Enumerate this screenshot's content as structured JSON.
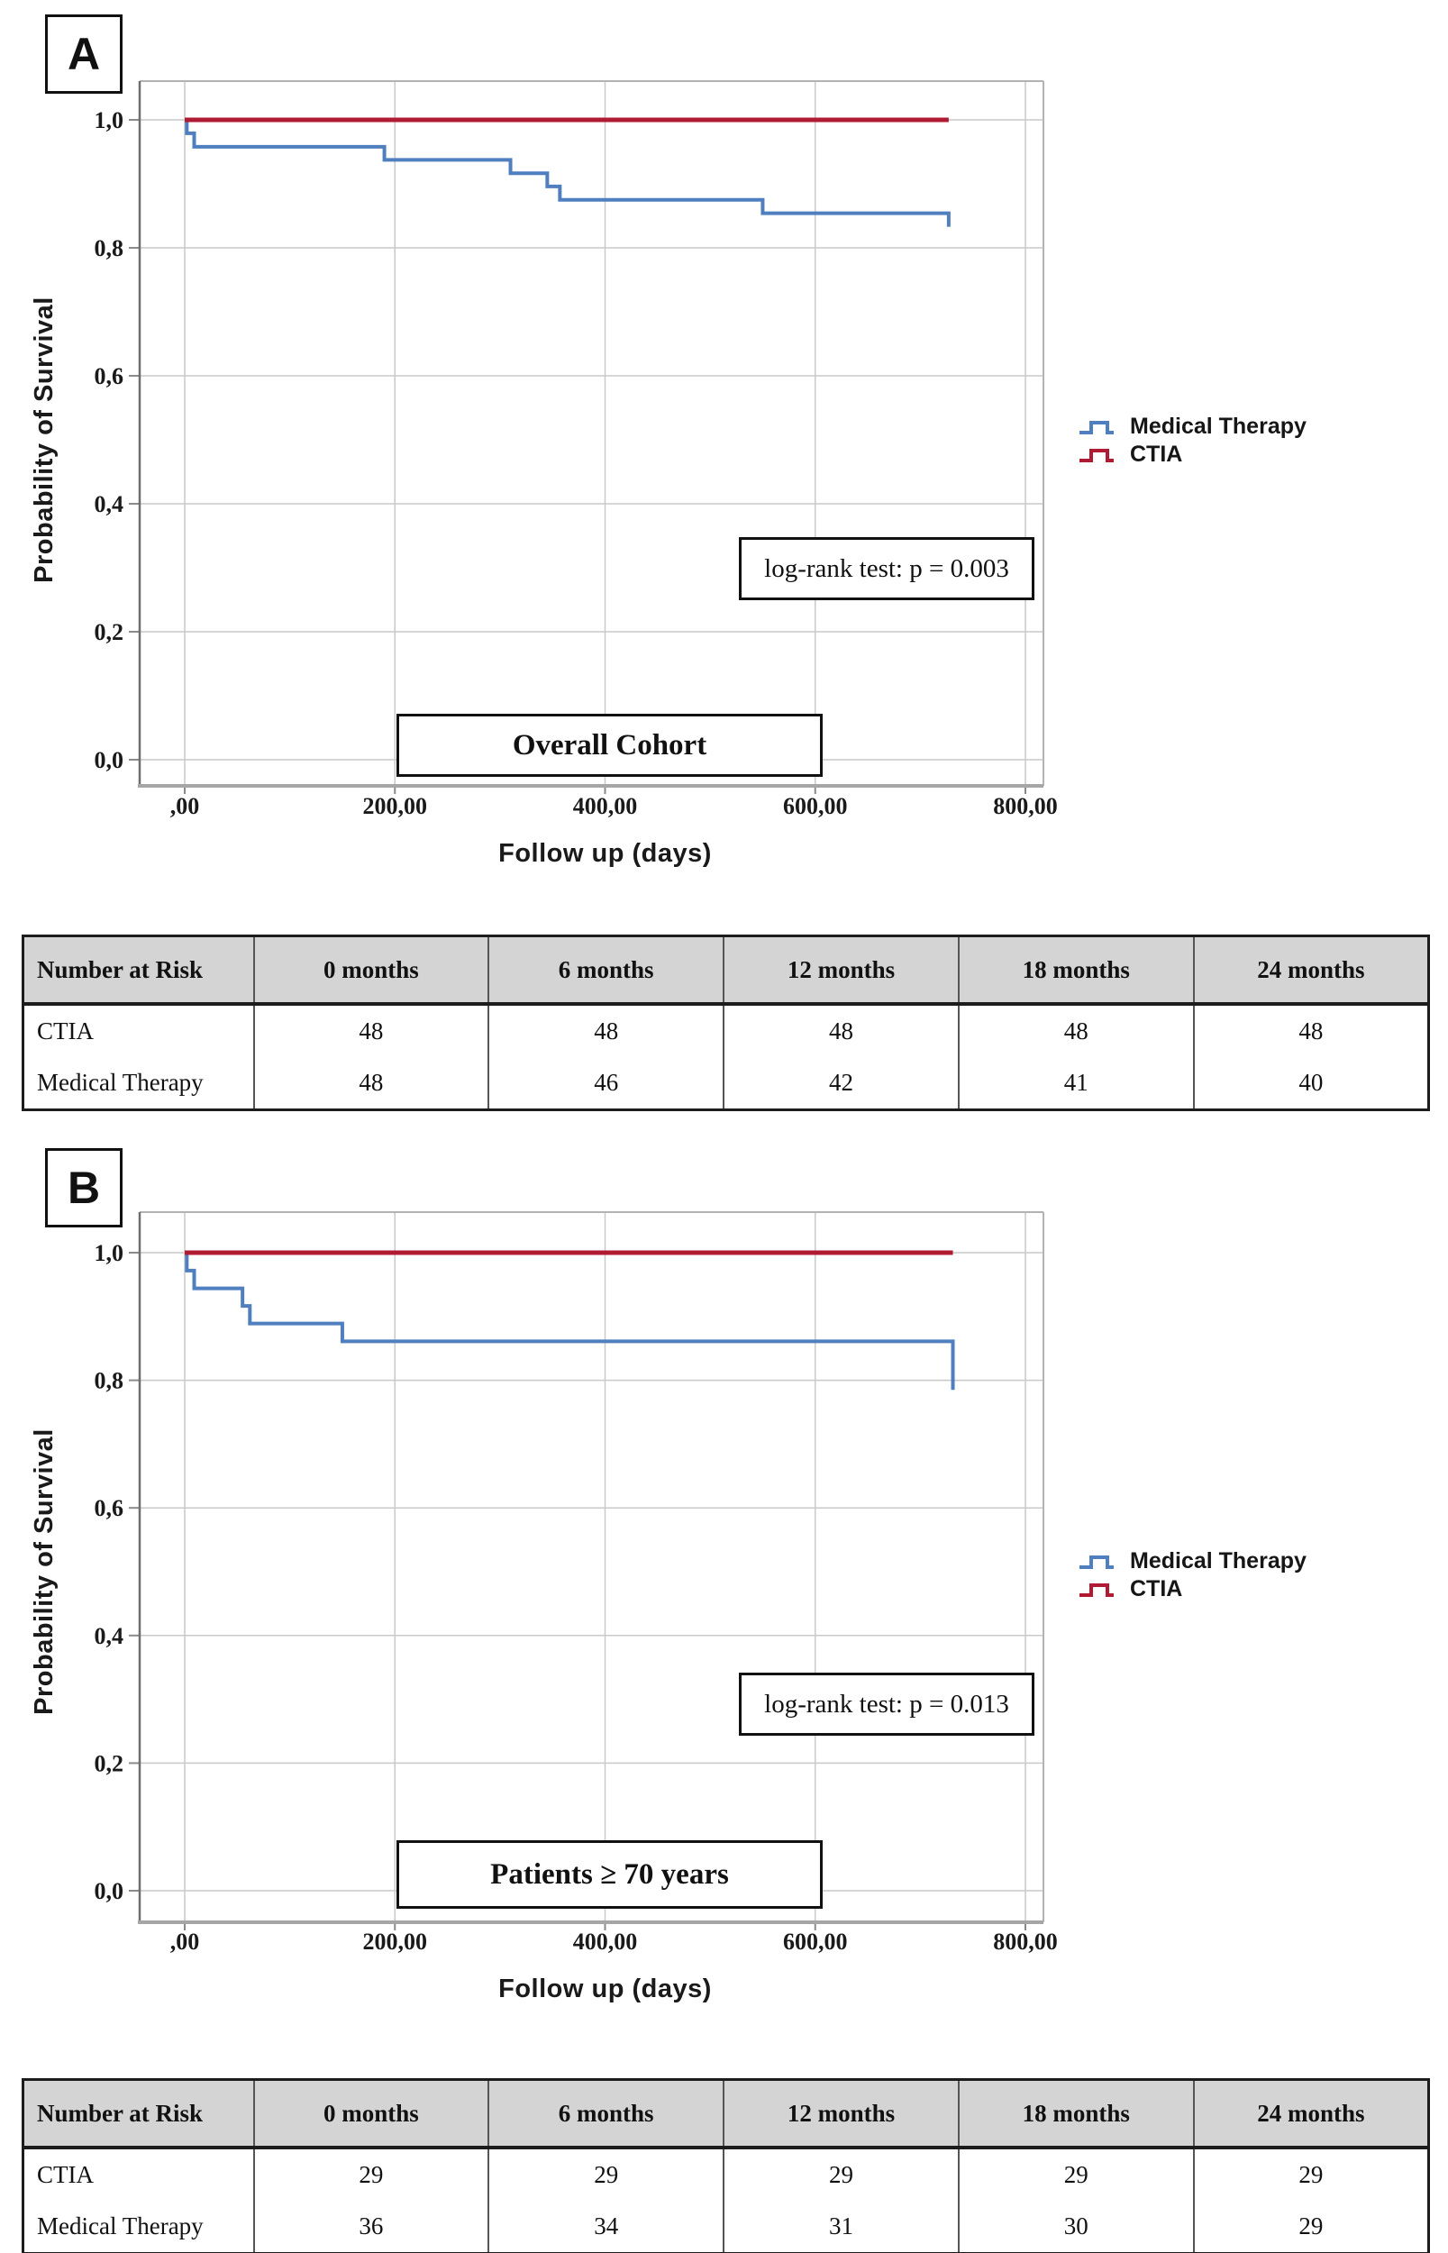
{
  "colors": {
    "medical_therapy": "#4f7fbf",
    "ctia": "#b01b33",
    "grid": "#c9c9c9",
    "table_header_bg": "#d4d4d4"
  },
  "chart_data": [
    {
      "type": "line",
      "subtype": "kaplan-meier-step",
      "title": "Overall Cohort",
      "annotation": "log-rank test: p = 0.003",
      "x_label": "Follow up (days)",
      "y_label": "Probability of Survival",
      "x_ticks": [
        ",00",
        "200,00",
        "400,00",
        "600,00",
        "800,00"
      ],
      "y_ticks": [
        "1,0",
        "0,8",
        "0,6",
        "0,4",
        "0,2",
        "0,0"
      ],
      "x_range": [
        0,
        800
      ],
      "y_range": [
        0,
        1
      ],
      "grid": true,
      "legend_position": "right",
      "series": [
        {
          "name": "Medical Therapy",
          "color": "#4f7fbf",
          "stroke_width": 4,
          "points": [
            [
              0,
              1.0
            ],
            [
              2,
              0.979
            ],
            [
              9,
              0.958
            ],
            [
              190,
              0.9375
            ],
            [
              310,
              0.9165
            ],
            [
              345,
              0.896
            ],
            [
              357,
              0.875
            ],
            [
              550,
              0.854
            ],
            [
              727,
              0.833
            ]
          ]
        },
        {
          "name": "CTIA",
          "color": "#b01b33",
          "stroke_width": 5,
          "points": [
            [
              0,
              1.0
            ],
            [
              727,
              1.0
            ]
          ]
        }
      ]
    },
    {
      "type": "line",
      "subtype": "kaplan-meier-step",
      "title": "Patients ≥ 70 years",
      "annotation": "log-rank test: p = 0.013",
      "x_label": "Follow up (days)",
      "y_label": "Probability of Survival",
      "x_ticks": [
        ",00",
        "200,00",
        "400,00",
        "600,00",
        "800,00"
      ],
      "y_ticks": [
        "1,0",
        "0,8",
        "0,6",
        "0,4",
        "0,2",
        "0,0"
      ],
      "x_range": [
        0,
        800
      ],
      "y_range": [
        0,
        1
      ],
      "grid": true,
      "legend_position": "right",
      "series": [
        {
          "name": "Medical Therapy",
          "color": "#4f7fbf",
          "stroke_width": 4,
          "points": [
            [
              0,
              1.0
            ],
            [
              2,
              0.972
            ],
            [
              9,
              0.944
            ],
            [
              55,
              0.9165
            ],
            [
              62,
              0.889
            ],
            [
              150,
              0.861
            ],
            [
              731,
              0.785
            ]
          ]
        },
        {
          "name": "CTIA",
          "color": "#b01b33",
          "stroke_width": 5,
          "points": [
            [
              0,
              1.0
            ],
            [
              731,
              1.0
            ]
          ]
        }
      ]
    }
  ],
  "panels": [
    {
      "letter": "A",
      "risk_table": {
        "header": [
          "Number at Risk",
          "0 months",
          "6 months",
          "12 months",
          "18 months",
          "24 months"
        ],
        "rows": [
          {
            "label": "CTIA",
            "values": [
              "48",
              "48",
              "48",
              "48",
              "48"
            ]
          },
          {
            "label": "Medical Therapy",
            "values": [
              "48",
              "46",
              "42",
              "41",
              "40"
            ]
          }
        ]
      }
    },
    {
      "letter": "B",
      "risk_table": {
        "header": [
          "Number at Risk",
          "0 months",
          "6 months",
          "12 months",
          "18 months",
          "24 months"
        ],
        "rows": [
          {
            "label": "CTIA",
            "values": [
              "29",
              "29",
              "29",
              "29",
              "29"
            ]
          },
          {
            "label": "Medical Therapy",
            "values": [
              "36",
              "34",
              "31",
              "30",
              "29"
            ]
          }
        ]
      }
    }
  ]
}
